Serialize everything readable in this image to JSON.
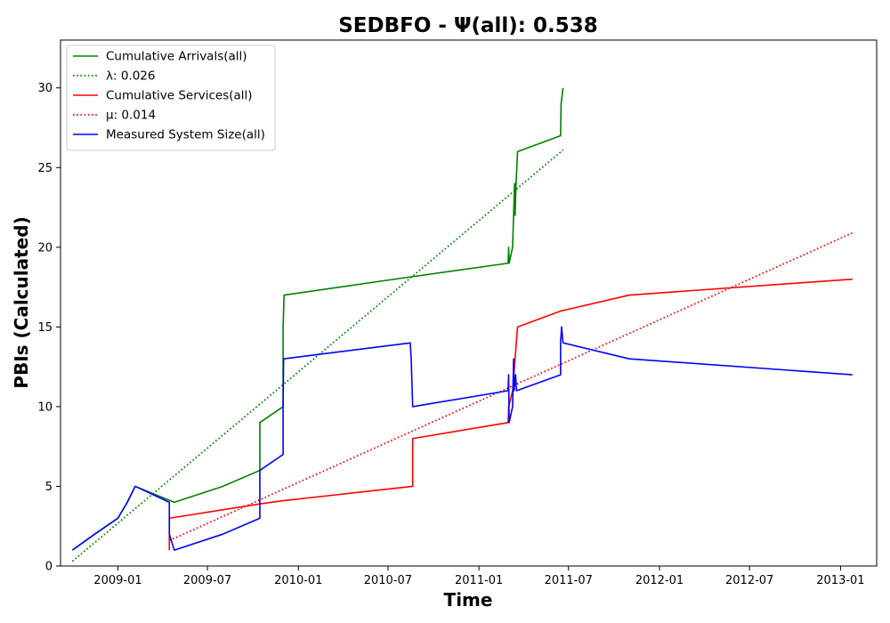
{
  "chart_data": {
    "type": "line",
    "title": "SEDBFO -  Ψ(all): 0.538",
    "xlabel": "Time",
    "ylabel": "PBIs (Calculated)",
    "xlim": [
      "2008-09-07",
      "2013-03-15"
    ],
    "ylim": [
      0,
      33
    ],
    "x_ticks": [
      "2009-01-01",
      "2009-07-01",
      "2010-01-01",
      "2010-07-01",
      "2011-01-01",
      "2011-07-01",
      "2012-01-01",
      "2012-07-01",
      "2013-01-01"
    ],
    "x_tick_labels": [
      "2009-01",
      "2009-07",
      "2010-01",
      "2010-07",
      "2011-01",
      "2011-07",
      "2012-01",
      "2012-07",
      "2013-01"
    ],
    "y_ticks": [
      0,
      5,
      10,
      15,
      20,
      25,
      30
    ],
    "y_tick_labels": [
      "0",
      "5",
      "10",
      "15",
      "20",
      "25",
      "30"
    ],
    "grid": false,
    "legend_position": "top-left",
    "series": [
      {
        "name": "Cumulative Arrivals(all)",
        "color": "#008000",
        "style": "solid",
        "points": [
          [
            "2008-10-01",
            1
          ],
          [
            "2008-11-15",
            2
          ],
          [
            "2009-01-01",
            3
          ],
          [
            "2009-01-20",
            4
          ],
          [
            "2009-02-05",
            5
          ],
          [
            "2009-04-25",
            4
          ],
          [
            "2009-08-01",
            5
          ],
          [
            "2009-10-15",
            6
          ],
          [
            "2009-10-15",
            9
          ],
          [
            "2009-12-01",
            10
          ],
          [
            "2009-12-01",
            15
          ],
          [
            "2009-12-03",
            17
          ],
          [
            "2010-07-15",
            18
          ],
          [
            "2011-03-01",
            19
          ],
          [
            "2011-03-02",
            20
          ],
          [
            "2011-03-03",
            19
          ],
          [
            "2011-03-10",
            20
          ],
          [
            "2011-03-12",
            22
          ],
          [
            "2011-03-14",
            24
          ],
          [
            "2011-03-15",
            22
          ],
          [
            "2011-03-17",
            24
          ],
          [
            "2011-03-20",
            26
          ],
          [
            "2011-06-15",
            27
          ],
          [
            "2011-06-16",
            29
          ],
          [
            "2011-06-20",
            30
          ]
        ]
      },
      {
        "name": "λ: 0.026",
        "color": "#008000",
        "style": "dotted",
        "points": [
          [
            "2008-10-01",
            0.3
          ],
          [
            "2011-06-20",
            26.1
          ]
        ]
      },
      {
        "name": "Cumulative Services(all)",
        "color": "#ff0000",
        "style": "solid",
        "points": [
          [
            "2009-04-15",
            1
          ],
          [
            "2009-04-15",
            3
          ],
          [
            "2009-10-15",
            3.9
          ],
          [
            "2009-12-01",
            4.1
          ],
          [
            "2010-08-20",
            5
          ],
          [
            "2010-08-20",
            8
          ],
          [
            "2011-03-01",
            9
          ],
          [
            "2011-03-02",
            10
          ],
          [
            "2011-03-10",
            11
          ],
          [
            "2011-03-20",
            15
          ],
          [
            "2011-06-15",
            16
          ],
          [
            "2011-11-01",
            17
          ],
          [
            "2013-01-25",
            18
          ]
        ]
      },
      {
        "name": "μ: 0.014",
        "color": "#ff0000",
        "style": "dotted",
        "points": [
          [
            "2009-04-15",
            1.6
          ],
          [
            "2013-01-25",
            20.9
          ]
        ]
      },
      {
        "name": "Measured System Size(all)",
        "color": "#0000ff",
        "style": "solid",
        "points": [
          [
            "2008-10-01",
            1
          ],
          [
            "2008-11-15",
            2
          ],
          [
            "2009-01-01",
            3
          ],
          [
            "2009-01-20",
            4
          ],
          [
            "2009-02-05",
            5
          ],
          [
            "2009-04-15",
            4
          ],
          [
            "2009-04-15",
            2
          ],
          [
            "2009-04-25",
            1
          ],
          [
            "2009-08-01",
            2
          ],
          [
            "2009-10-15",
            3
          ],
          [
            "2009-10-15",
            6
          ],
          [
            "2009-12-01",
            7
          ],
          [
            "2009-12-01",
            10
          ],
          [
            "2009-12-02",
            13
          ],
          [
            "2010-08-15",
            14
          ],
          [
            "2010-08-17",
            13
          ],
          [
            "2010-08-20",
            10
          ],
          [
            "2011-03-01",
            11
          ],
          [
            "2011-03-02",
            12
          ],
          [
            "2011-03-03",
            9
          ],
          [
            "2011-03-10",
            10
          ],
          [
            "2011-03-12",
            13
          ],
          [
            "2011-03-13",
            11
          ],
          [
            "2011-03-16",
            12
          ],
          [
            "2011-03-18",
            11
          ],
          [
            "2011-06-15",
            12
          ],
          [
            "2011-06-15",
            14
          ],
          [
            "2011-06-17",
            15
          ],
          [
            "2011-06-20",
            14
          ],
          [
            "2011-11-01",
            13
          ],
          [
            "2013-01-25",
            12
          ]
        ]
      }
    ]
  }
}
